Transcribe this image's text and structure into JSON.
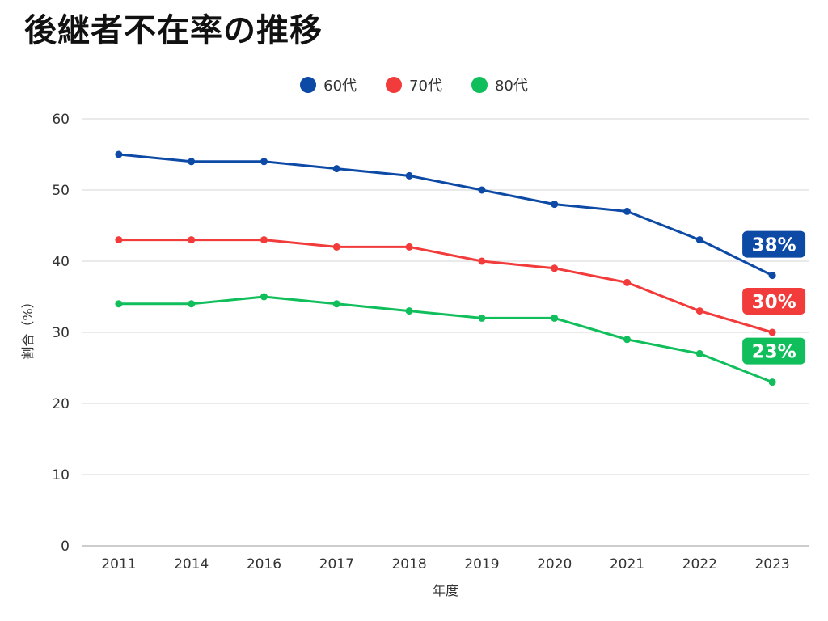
{
  "chart_data": {
    "type": "line",
    "title": "後継者不在率の推移",
    "xlabel": "年度",
    "ylabel": "割合（%）",
    "ylim": [
      0,
      60
    ],
    "yticks": [
      0,
      10,
      20,
      30,
      40,
      50,
      60
    ],
    "grid": true,
    "legend_position": "top-center",
    "categories": [
      "2011",
      "2014",
      "2016",
      "2017",
      "2018",
      "2019",
      "2020",
      "2021",
      "2022",
      "2023"
    ],
    "series": [
      {
        "name": "60代",
        "color": "#0d4aa6",
        "values": [
          55,
          54,
          54,
          53,
          52,
          50,
          48,
          47,
          43,
          38
        ],
        "end_label": "38%"
      },
      {
        "name": "70代",
        "color": "#f23b3b",
        "values": [
          43,
          43,
          43,
          42,
          42,
          40,
          39,
          37,
          33,
          30
        ],
        "end_label": "30%"
      },
      {
        "name": "80代",
        "color": "#10bf5b",
        "values": [
          34,
          34,
          35,
          34,
          33,
          32,
          32,
          29,
          27,
          23
        ],
        "end_label": "23%"
      }
    ]
  }
}
